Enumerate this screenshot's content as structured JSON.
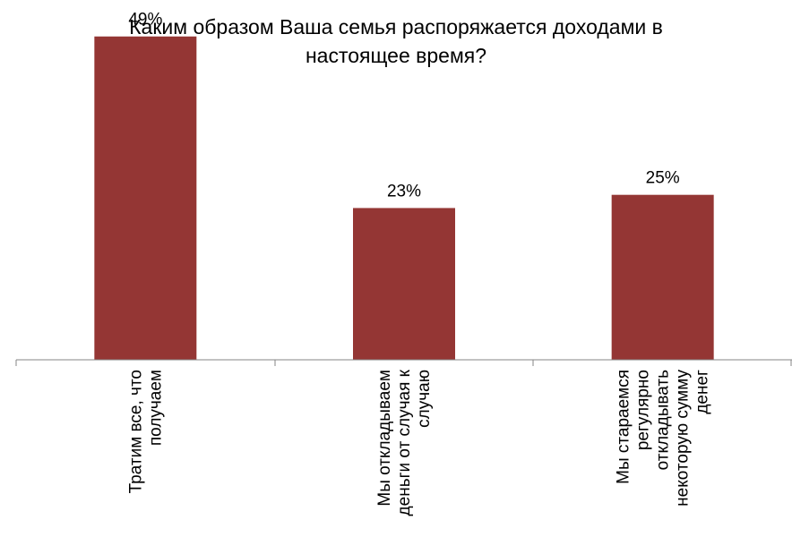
{
  "chart_data": {
    "type": "bar",
    "title": "Каким образом Ваша семья распоряжается доходами в настоящее время?",
    "categories": [
      [
        "Тратим все, что",
        "получаем"
      ],
      [
        "Мы откладываем",
        "деньги от случая к",
        "случаю"
      ],
      [
        "Мы стараемся",
        "регулярно",
        "откладывать",
        "некоторую сумму",
        "денег"
      ]
    ],
    "values": [
      49,
      23,
      25
    ],
    "value_labels": [
      "49%",
      "23%",
      "25%"
    ],
    "ylim": [
      0,
      50
    ],
    "grid": false,
    "legend": "none",
    "bar_color": "#943634"
  }
}
